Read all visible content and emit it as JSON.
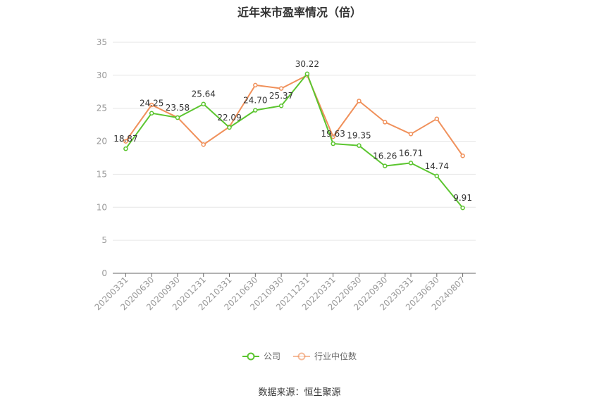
{
  "chart_data": {
    "type": "line",
    "title": "近年来市盈率情况（倍）",
    "xlabel": "",
    "ylabel": "",
    "ylim": [
      0,
      35
    ],
    "yticks": [
      0,
      5,
      10,
      15,
      20,
      25,
      30,
      35
    ],
    "grid": true,
    "legend_position": "bottom-center",
    "categories": [
      "20200331",
      "20200630",
      "20200930",
      "20201231",
      "20210331",
      "20210630",
      "20210930",
      "20211231",
      "20220331",
      "20220630",
      "20220930",
      "20230331",
      "20230630",
      "20240807"
    ],
    "series": [
      {
        "name": "公司",
        "color": "#5bc52f",
        "values": [
          18.87,
          24.25,
          23.58,
          25.64,
          22.09,
          24.7,
          25.37,
          30.22,
          19.63,
          19.35,
          16.26,
          16.71,
          14.74,
          9.91
        ],
        "labels": [
          "18.87",
          "24.25",
          "23.58",
          "25.64",
          "22.09",
          "24.70",
          "25.37",
          "30.22",
          "19.63",
          "19.35",
          "16.26",
          "16.71",
          "14.74",
          "9.91"
        ]
      },
      {
        "name": "行业中位数",
        "color": "#f0905a",
        "values": [
          20.0,
          25.5,
          23.6,
          19.5,
          22.2,
          28.5,
          28.0,
          30.0,
          20.7,
          26.1,
          22.9,
          21.1,
          23.4,
          17.8
        ]
      }
    ]
  },
  "footer": {
    "source": "数据来源：恒生聚源"
  }
}
